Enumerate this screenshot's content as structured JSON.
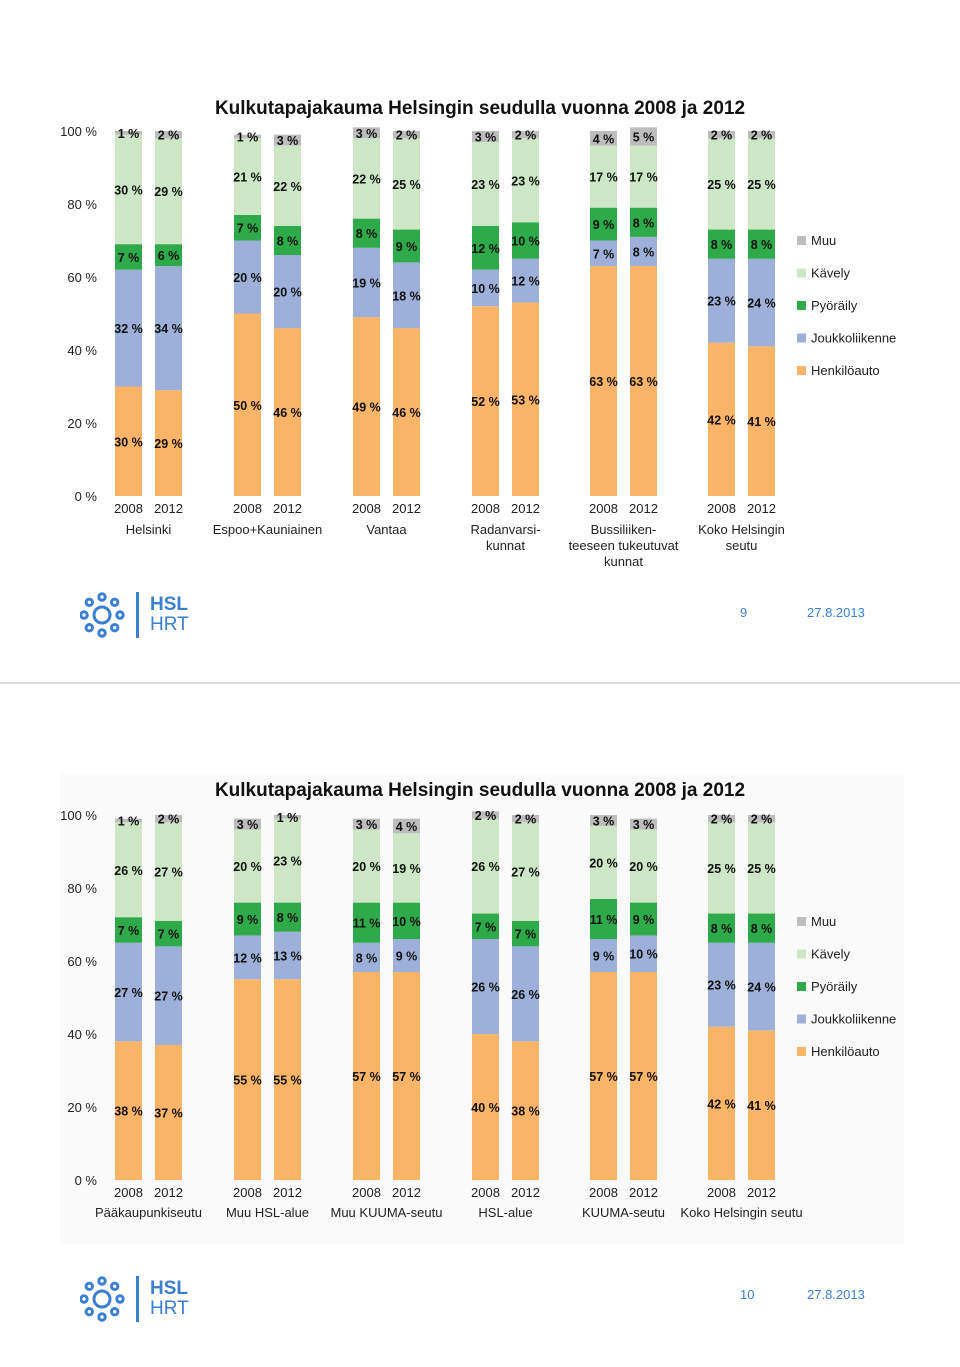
{
  "colors": {
    "Henkilöauto": "#f9b468",
    "Joukkoliikenne": "#9db0d9",
    "Pyöräily": "#2faa4a",
    "Kävely": "#cde6c5",
    "Muu": "#bdbdbd",
    "brand": "#3a7fd0"
  },
  "legend": [
    "Muu",
    "Kävely",
    "Pyöräily",
    "Joukkoliikenne",
    "Henkilöauto"
  ],
  "slide1": {
    "page_number": "9",
    "date": "27.8.2013",
    "logo_text_top": "HSL",
    "logo_text_bottom": "HRT"
  },
  "slide2": {
    "page_number": "10",
    "date": "27.8.2013",
    "logo_text_top": "HSL",
    "logo_text_bottom": "HRT"
  },
  "chart_data": [
    {
      "type": "bar",
      "stacked": true,
      "title": "Kulkutapajakauma Helsingin seudulla vuonna 2008 ja 2012",
      "yticks": [
        "0 %",
        "20 %",
        "40 %",
        "60 %",
        "80 %",
        "100 %"
      ],
      "ylim": [
        0,
        100
      ],
      "grid": false,
      "legend_position": "right",
      "groups": [
        {
          "name": [
            "Helsinki"
          ],
          "years": [
            "2008",
            "2012"
          ],
          "values": [
            [
              30,
              32,
              7,
              30,
              1
            ],
            [
              29,
              34,
              6,
              29,
              2
            ]
          ]
        },
        {
          "name": [
            "Espoo+Kauniainen"
          ],
          "years": [
            "2008",
            "2012"
          ],
          "values": [
            [
              50,
              20,
              7,
              21,
              1
            ],
            [
              46,
              20,
              8,
              22,
              3
            ]
          ]
        },
        {
          "name": [
            "Vantaa"
          ],
          "years": [
            "2008",
            "2012"
          ],
          "values": [
            [
              49,
              19,
              8,
              22,
              3
            ],
            [
              46,
              18,
              9,
              25,
              2
            ]
          ]
        },
        {
          "name": [
            "Radanvarsi-",
            "kunnat"
          ],
          "years": [
            "2008",
            "2012"
          ],
          "values": [
            [
              52,
              10,
              12,
              23,
              3
            ],
            [
              53,
              12,
              10,
              23,
              2
            ]
          ]
        },
        {
          "name": [
            "Bussiliiken-",
            "teeseen tukeutuvat",
            "kunnat"
          ],
          "years": [
            "2008",
            "2012"
          ],
          "values": [
            [
              63,
              7,
              9,
              17,
              4
            ],
            [
              63,
              8,
              8,
              17,
              5
            ]
          ]
        },
        {
          "name": [
            "Koko Helsingin",
            "seutu"
          ],
          "years": [
            "2008",
            "2012"
          ],
          "values": [
            [
              42,
              23,
              8,
              25,
              2
            ],
            [
              41,
              24,
              8,
              25,
              2
            ]
          ]
        }
      ]
    },
    {
      "type": "bar",
      "stacked": true,
      "title": "Kulkutapajakauma Helsingin seudulla vuonna 2008 ja 2012",
      "yticks": [
        "0 %",
        "20 %",
        "40 %",
        "60 %",
        "80 %",
        "100 %"
      ],
      "ylim": [
        0,
        100
      ],
      "grid": false,
      "legend_position": "right",
      "groups": [
        {
          "name": [
            "Pääkaupunkiseutu"
          ],
          "years": [
            "2008",
            "2012"
          ],
          "values": [
            [
              38,
              27,
              7,
              26,
              1
            ],
            [
              37,
              27,
              7,
              27,
              2
            ]
          ]
        },
        {
          "name": [
            "Muu HSL-alue"
          ],
          "years": [
            "2008",
            "2012"
          ],
          "values": [
            [
              55,
              12,
              9,
              20,
              3
            ],
            [
              55,
              13,
              8,
              23,
              1
            ]
          ]
        },
        {
          "name": [
            "Muu KUUMA-seutu"
          ],
          "years": [
            "2008",
            "2012"
          ],
          "values": [
            [
              57,
              8,
              11,
              20,
              3
            ],
            [
              57,
              9,
              10,
              19,
              4
            ]
          ]
        },
        {
          "name": [
            "HSL-alue"
          ],
          "years": [
            "2008",
            "2012"
          ],
          "values": [
            [
              40,
              26,
              7,
              26,
              2
            ],
            [
              38,
              26,
              7,
              27,
              2
            ]
          ]
        },
        {
          "name": [
            "KUUMA-seutu"
          ],
          "years": [
            "2008",
            "2012"
          ],
          "values": [
            [
              57,
              9,
              11,
              20,
              3
            ],
            [
              57,
              10,
              9,
              20,
              3
            ]
          ]
        },
        {
          "name": [
            "Koko Helsingin seutu"
          ],
          "years": [
            "2008",
            "2012"
          ],
          "values": [
            [
              42,
              23,
              8,
              25,
              2
            ],
            [
              41,
              24,
              8,
              25,
              2
            ]
          ]
        }
      ]
    }
  ]
}
